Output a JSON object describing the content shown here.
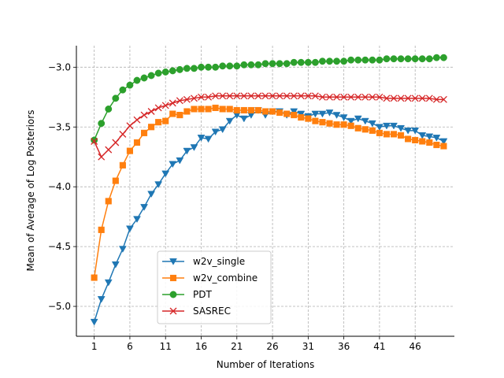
{
  "chart_data": {
    "type": "line",
    "title": "",
    "xlabel": "Number of Iterations",
    "ylabel": "Mean of Average of Log Posteriors",
    "xlim": [
      -1.5,
      51.5
    ],
    "ylim": [
      -5.25,
      -2.82
    ],
    "xticks": [
      1,
      6,
      11,
      16,
      21,
      26,
      31,
      36,
      41,
      46
    ],
    "xtick_labels": [
      "1",
      "6",
      "11",
      "16",
      "21",
      "26",
      "31",
      "36",
      "41",
      "46"
    ],
    "yticks": [
      -5.0,
      -4.5,
      -4.0,
      -3.5,
      -3.0
    ],
    "ytick_labels": [
      "−5.0",
      "−4.5",
      "−4.0",
      "−3.5",
      "−3.0"
    ],
    "grid": true,
    "legend_location": "lower-center",
    "x": [
      1,
      2,
      3,
      4,
      5,
      6,
      7,
      8,
      9,
      10,
      11,
      12,
      13,
      14,
      15,
      16,
      17,
      18,
      19,
      20,
      21,
      22,
      23,
      24,
      25,
      26,
      27,
      28,
      29,
      30,
      31,
      32,
      33,
      34,
      35,
      36,
      37,
      38,
      39,
      40,
      41,
      42,
      43,
      44,
      45,
      46,
      47,
      48,
      49,
      50
    ],
    "series": [
      {
        "name": "w2v_single",
        "color": "#1f77b4",
        "marker": "triangle-down",
        "values": [
          -5.13,
          -4.94,
          -4.8,
          -4.65,
          -4.52,
          -4.35,
          -4.27,
          -4.17,
          -4.06,
          -3.98,
          -3.89,
          -3.81,
          -3.78,
          -3.7,
          -3.67,
          -3.59,
          -3.6,
          -3.54,
          -3.52,
          -3.45,
          -3.4,
          -3.43,
          -3.4,
          -3.36,
          -3.4,
          -3.37,
          -3.37,
          -3.4,
          -3.37,
          -3.39,
          -3.41,
          -3.39,
          -3.39,
          -3.38,
          -3.4,
          -3.42,
          -3.45,
          -3.43,
          -3.45,
          -3.47,
          -3.5,
          -3.49,
          -3.49,
          -3.51,
          -3.53,
          -3.53,
          -3.57,
          -3.58,
          -3.59,
          -3.62
        ]
      },
      {
        "name": "w2v_combine",
        "color": "#ff7f0e",
        "marker": "square",
        "values": [
          -4.76,
          -4.36,
          -4.12,
          -3.95,
          -3.82,
          -3.7,
          -3.63,
          -3.55,
          -3.5,
          -3.46,
          -3.45,
          -3.39,
          -3.4,
          -3.37,
          -3.35,
          -3.35,
          -3.35,
          -3.34,
          -3.35,
          -3.35,
          -3.36,
          -3.36,
          -3.36,
          -3.36,
          -3.37,
          -3.37,
          -3.38,
          -3.39,
          -3.4,
          -3.42,
          -3.43,
          -3.45,
          -3.46,
          -3.47,
          -3.48,
          -3.48,
          -3.49,
          -3.51,
          -3.52,
          -3.53,
          -3.55,
          -3.56,
          -3.56,
          -3.57,
          -3.6,
          -3.61,
          -3.62,
          -3.63,
          -3.65,
          -3.66
        ]
      },
      {
        "name": "PDT",
        "color": "#2ca02c",
        "marker": "circle",
        "values": [
          -3.61,
          -3.47,
          -3.35,
          -3.26,
          -3.19,
          -3.15,
          -3.11,
          -3.09,
          -3.07,
          -3.05,
          -3.04,
          -3.03,
          -3.02,
          -3.01,
          -3.01,
          -3.0,
          -3.0,
          -3.0,
          -2.99,
          -2.99,
          -2.99,
          -2.98,
          -2.98,
          -2.98,
          -2.97,
          -2.97,
          -2.97,
          -2.97,
          -2.96,
          -2.96,
          -2.96,
          -2.96,
          -2.95,
          -2.95,
          -2.95,
          -2.95,
          -2.94,
          -2.94,
          -2.94,
          -2.94,
          -2.94,
          -2.93,
          -2.93,
          -2.93,
          -2.93,
          -2.93,
          -2.93,
          -2.93,
          -2.92,
          -2.92
        ]
      },
      {
        "name": "SASREC",
        "color": "#d62728",
        "marker": "x",
        "values": [
          -3.62,
          -3.75,
          -3.69,
          -3.63,
          -3.56,
          -3.49,
          -3.44,
          -3.4,
          -3.37,
          -3.34,
          -3.32,
          -3.3,
          -3.28,
          -3.27,
          -3.26,
          -3.25,
          -3.25,
          -3.24,
          -3.24,
          -3.24,
          -3.24,
          -3.24,
          -3.24,
          -3.24,
          -3.24,
          -3.24,
          -3.24,
          -3.24,
          -3.24,
          -3.24,
          -3.24,
          -3.24,
          -3.25,
          -3.25,
          -3.25,
          -3.25,
          -3.25,
          -3.25,
          -3.25,
          -3.25,
          -3.25,
          -3.26,
          -3.26,
          -3.26,
          -3.26,
          -3.26,
          -3.26,
          -3.26,
          -3.27,
          -3.27
        ]
      }
    ]
  }
}
